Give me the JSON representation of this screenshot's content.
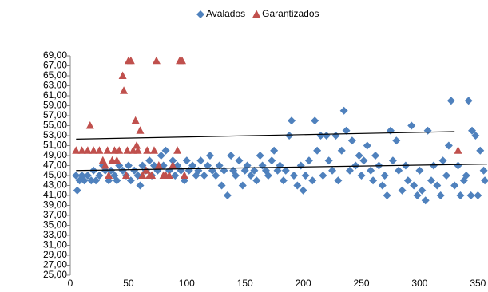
{
  "chart_data": {
    "type": "scatter",
    "legend": "top",
    "xlim": [
      0,
      358
    ],
    "ylim": [
      25,
      69
    ],
    "xticks": [
      0,
      50,
      100,
      150,
      200,
      250,
      300,
      350
    ],
    "yticks": [
      {
        "value": 25,
        "label": "25,00"
      },
      {
        "value": 27,
        "label": "27,00"
      },
      {
        "value": 29,
        "label": "29,00"
      },
      {
        "value": 31,
        "label": "31,00"
      },
      {
        "value": 33,
        "label": "33,00"
      },
      {
        "value": 35,
        "label": "35,00"
      },
      {
        "value": 37,
        "label": "37,00"
      },
      {
        "value": 39,
        "label": "39,00"
      },
      {
        "value": 41,
        "label": "41,00"
      },
      {
        "value": 43,
        "label": "43,00"
      },
      {
        "value": 45,
        "label": "45,00"
      },
      {
        "value": 47,
        "label": "47,00"
      },
      {
        "value": 49,
        "label": "49,00"
      },
      {
        "value": 51,
        "label": "51,00"
      },
      {
        "value": 53,
        "label": "53,00"
      },
      {
        "value": 55,
        "label": "55,00"
      },
      {
        "value": 57,
        "label": "57,00"
      },
      {
        "value": 59,
        "label": "59,00"
      },
      {
        "value": 61,
        "label": "61,00"
      },
      {
        "value": 63,
        "label": "63,00"
      },
      {
        "value": 65,
        "label": "65,00"
      },
      {
        "value": 67,
        "label": "67,00"
      },
      {
        "value": 69,
        "label": "69,00"
      }
    ],
    "series": [
      {
        "name": "Avalados",
        "color": "#4f81bd",
        "marker": "diamond",
        "x": [
          5,
          6,
          8,
          10,
          12,
          15,
          18,
          20,
          22,
          25,
          28,
          30,
          33,
          35,
          38,
          40,
          42,
          45,
          48,
          50,
          52,
          55,
          58,
          60,
          62,
          65,
          68,
          70,
          72,
          75,
          78,
          80,
          82,
          85,
          88,
          90,
          92,
          95,
          98,
          100,
          102,
          105,
          108,
          110,
          112,
          115,
          118,
          120,
          122,
          125,
          128,
          130,
          132,
          135,
          138,
          140,
          142,
          145,
          148,
          150,
          152,
          155,
          158,
          160,
          163,
          165,
          168,
          170,
          173,
          175,
          178,
          180,
          183,
          185,
          188,
          190,
          192,
          195,
          198,
          200,
          202,
          205,
          208,
          210,
          212,
          215,
          217,
          220,
          222,
          225,
          228,
          230,
          233,
          235,
          237,
          240,
          242,
          245,
          248,
          250,
          252,
          255,
          258,
          260,
          262,
          265,
          268,
          270,
          272,
          275,
          277,
          280,
          282,
          285,
          288,
          290,
          293,
          295,
          298,
          300,
          302,
          305,
          307,
          310,
          312,
          315,
          318,
          320,
          323,
          325,
          327,
          330,
          333,
          335,
          338,
          340,
          342,
          344,
          345,
          348,
          350,
          352,
          355,
          356
        ],
        "values": [
          45,
          42,
          44,
          45,
          44,
          45,
          44,
          46,
          44,
          45,
          47,
          46,
          44,
          46,
          45,
          44,
          47,
          46,
          45,
          47,
          44,
          46,
          45,
          43,
          47,
          46,
          48,
          45,
          47,
          46,
          49,
          47,
          50,
          46,
          48,
          45,
          47,
          46,
          44,
          48,
          46,
          47,
          45,
          46,
          48,
          45,
          47,
          49,
          46,
          45,
          47,
          43,
          46,
          41,
          49,
          46,
          45,
          48,
          43,
          46,
          47,
          45,
          46,
          44,
          49,
          47,
          46,
          45,
          48,
          50,
          46,
          47,
          44,
          46,
          53,
          56,
          45,
          43,
          47,
          42,
          45,
          48,
          44,
          56,
          50,
          53,
          45,
          53,
          48,
          46,
          53,
          44,
          50,
          58,
          54,
          46,
          52,
          47,
          49,
          45,
          48,
          51,
          46,
          44,
          49,
          47,
          43,
          45,
          41,
          54,
          48,
          52,
          46,
          42,
          47,
          44,
          55,
          43,
          41,
          46,
          42,
          40,
          54,
          44,
          47,
          43,
          41,
          48,
          45,
          51,
          60,
          43,
          47,
          41,
          44,
          45,
          60,
          41,
          54,
          53,
          41,
          50,
          46,
          44
        ]
      },
      {
        "name": "Garantizados",
        "color": "#c0504d",
        "marker": "triangle",
        "x": [
          5,
          10,
          15,
          17,
          20,
          25,
          28,
          30,
          32,
          33,
          36,
          38,
          40,
          42,
          45,
          46,
          48,
          49,
          50,
          52,
          54,
          56,
          57,
          58,
          60,
          62,
          65,
          66,
          68,
          70,
          72,
          74,
          76,
          80,
          82,
          85,
          88,
          92,
          94,
          96,
          98,
          333
        ],
        "values": [
          50,
          50,
          50,
          55,
          50,
          50,
          48,
          47,
          50,
          45,
          48,
          50,
          48,
          50,
          65,
          62,
          45,
          50,
          68,
          68,
          50,
          56,
          51,
          50,
          54,
          45,
          46,
          50,
          45,
          45,
          50,
          68,
          47,
          45,
          45,
          45,
          47,
          50,
          68,
          68,
          45,
          50
        ]
      }
    ],
    "trendlines": [
      {
        "x": [
          5,
          358
        ],
        "values": [
          46,
          47.3
        ]
      },
      {
        "x": [
          5,
          330
        ],
        "values": [
          52.3,
          53.8
        ]
      }
    ]
  }
}
